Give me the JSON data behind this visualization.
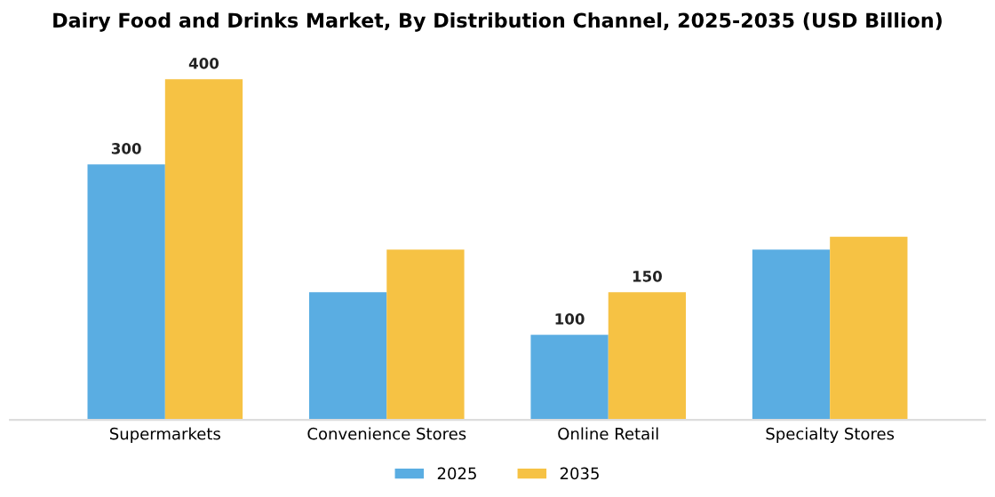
{
  "chart_data": {
    "type": "bar",
    "title": "Dairy Food and Drinks Market, By Distribution Channel, 2025-2035 (USD Billion)",
    "categories": [
      "Supermarkets",
      "Convenience Stores",
      "Online Retail",
      "Specialty Stores"
    ],
    "series": [
      {
        "name": "2025",
        "color": "#5aade2",
        "values": [
          300,
          150,
          100,
          200
        ],
        "value_labels": [
          "300",
          null,
          "100",
          null
        ]
      },
      {
        "name": "2035",
        "color": "#f6c244",
        "values": [
          400,
          200,
          150,
          215
        ],
        "value_labels": [
          "400",
          null,
          "150",
          null
        ]
      }
    ],
    "legend": "bottom",
    "grid": false
  }
}
